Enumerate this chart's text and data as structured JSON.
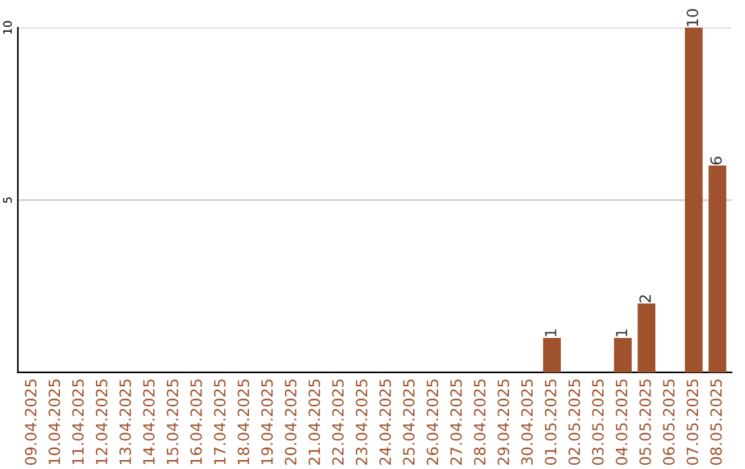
{
  "chart_data": {
    "type": "bar",
    "categories": [
      "09.04.2025",
      "10.04.2025",
      "11.04.2025",
      "12.04.2025",
      "13.04.2025",
      "14.04.2025",
      "15.04.2025",
      "16.04.2025",
      "17.04.2025",
      "18.04.2025",
      "19.04.2025",
      "20.04.2025",
      "21.04.2025",
      "22.04.2025",
      "23.04.2025",
      "24.04.2025",
      "25.04.2025",
      "26.04.2025",
      "27.04.2025",
      "28.04.2025",
      "29.04.2025",
      "30.04.2025",
      "01.05.2025",
      "02.05.2025",
      "03.05.2025",
      "04.05.2025",
      "05.05.2025",
      "06.05.2025",
      "07.05.2025",
      "08.05.2025"
    ],
    "values": [
      0,
      0,
      0,
      0,
      0,
      0,
      0,
      0,
      0,
      0,
      0,
      0,
      0,
      0,
      0,
      0,
      0,
      0,
      0,
      0,
      0,
      0,
      1,
      0,
      0,
      1,
      2,
      0,
      10,
      6
    ],
    "value_labels": [
      null,
      null,
      null,
      null,
      null,
      null,
      null,
      null,
      null,
      null,
      null,
      null,
      null,
      null,
      null,
      null,
      null,
      null,
      null,
      null,
      null,
      null,
      "1",
      null,
      null,
      "1",
      "2",
      null,
      "10",
      "6"
    ],
    "color": "#a0522d",
    "ylim": [
      0,
      10
    ],
    "yticks": [
      5,
      10
    ],
    "grid": "y",
    "legend": false
  }
}
